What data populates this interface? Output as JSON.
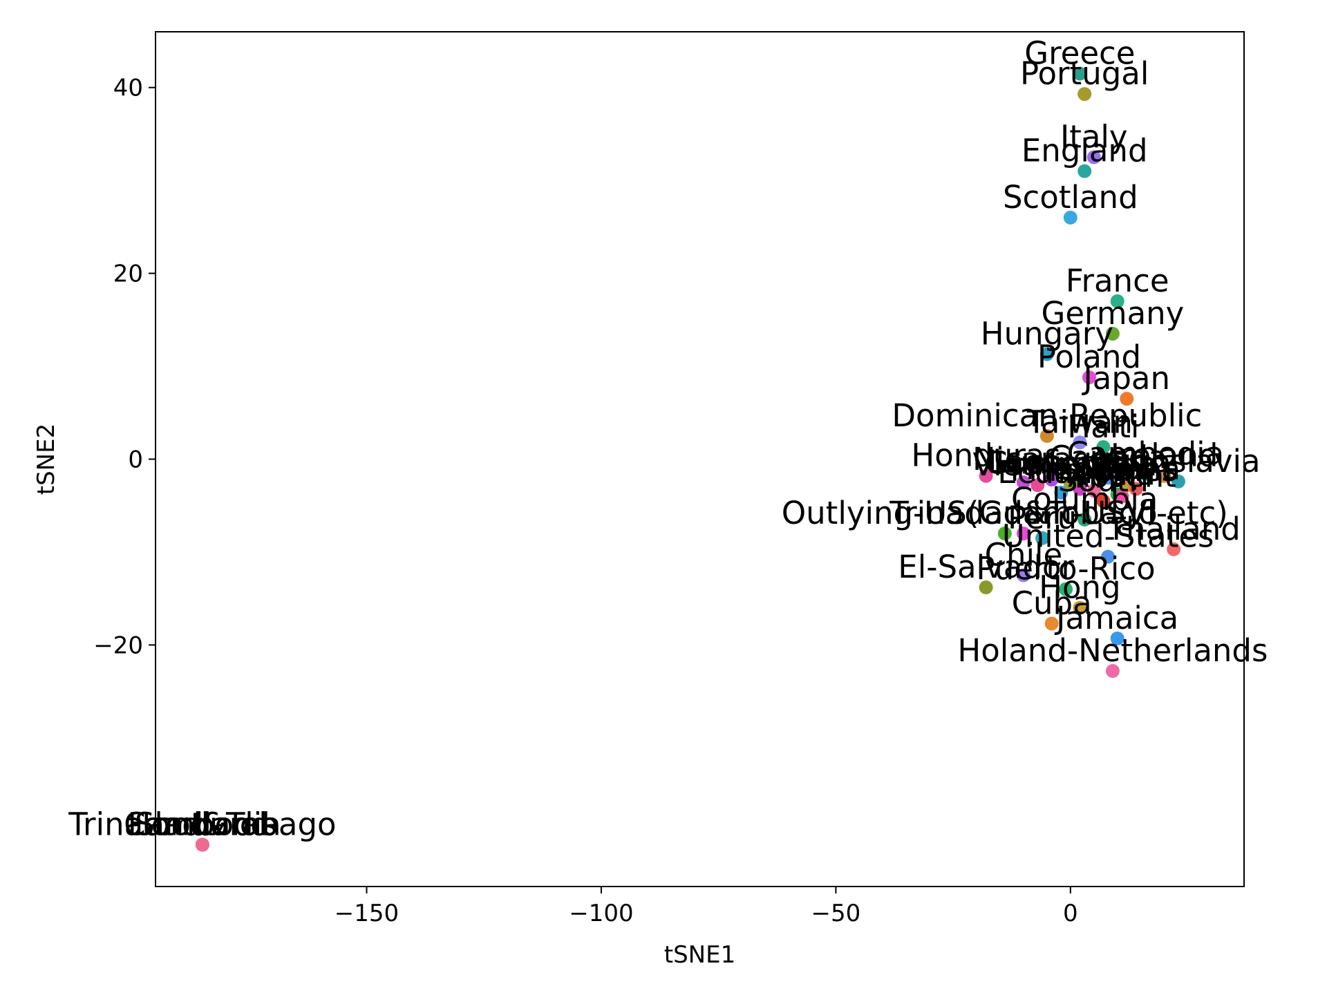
{
  "chart_data": {
    "type": "scatter",
    "title": "",
    "xlabel": "tSNE1",
    "ylabel": "tSNE2",
    "xlim": [
      -195,
      37
    ],
    "ylim": [
      -46,
      46
    ],
    "xticks": [
      -150,
      -100,
      -50,
      0
    ],
    "xtick_labels": [
      "−150",
      "−100",
      "−50",
      "0"
    ],
    "yticks": [
      -20,
      0,
      20,
      40
    ],
    "ytick_labels": [
      "−20",
      "0",
      "20",
      "40"
    ],
    "grid": false,
    "legend": "none",
    "points": [
      {
        "label": "Greece",
        "x": 2,
        "y": 41.5,
        "color": "#2a9d8f"
      },
      {
        "label": "Portugal",
        "x": 3,
        "y": 39.3,
        "color": "#a89a2a"
      },
      {
        "label": "Italy",
        "x": 5,
        "y": 32.5,
        "color": "#9b6ff0"
      },
      {
        "label": "England",
        "x": 3,
        "y": 31,
        "color": "#2aa6a0"
      },
      {
        "label": "Scotland",
        "x": 0,
        "y": 26,
        "color": "#3aa8e0"
      },
      {
        "label": "France",
        "x": 10,
        "y": 17,
        "color": "#2ab08a"
      },
      {
        "label": "Germany",
        "x": 9,
        "y": 13.5,
        "color": "#6aa82a"
      },
      {
        "label": "Hungary",
        "x": -5,
        "y": 11.3,
        "color": "#2aa0c8"
      },
      {
        "label": "Poland",
        "x": 4,
        "y": 8.8,
        "color": "#e84ad8"
      },
      {
        "label": "Japan",
        "x": 12,
        "y": 6.5,
        "color": "#f07a2a"
      },
      {
        "label": "Dominican-Republic",
        "x": -5,
        "y": 2.5,
        "color": "#d0892a"
      },
      {
        "label": "Taiwan",
        "x": 2,
        "y": 1.8,
        "color": "#8a8af0"
      },
      {
        "label": "Haiti",
        "x": 7,
        "y": 1.3,
        "color": "#2ab080"
      },
      {
        "label": "Honduras",
        "x": -18,
        "y": -1.8,
        "color": "#e84aa0"
      },
      {
        "label": "Laos",
        "x": -10,
        "y": -2.5,
        "color": "#c84ad8"
      },
      {
        "label": "Nicaragua",
        "x": -4,
        "y": -2.2,
        "color": "#b04ae0"
      },
      {
        "label": "Vietnam",
        "x": -7,
        "y": -2.8,
        "color": "#e84a9a"
      },
      {
        "label": "Mexico",
        "x": 2,
        "y": -3.2,
        "color": "#d040c8"
      },
      {
        "label": "Cambodia",
        "x": 16,
        "y": -1.6,
        "color": "#2ab0a8"
      },
      {
        "label": "Ireland",
        "x": 20,
        "y": -1.8,
        "color": "#d08a30"
      },
      {
        "label": "Yugoslavia",
        "x": 23,
        "y": -2.4,
        "color": "#2a9fb0"
      },
      {
        "label": "Iran",
        "x": 12,
        "y": -2.8,
        "color": "#c89a2a"
      },
      {
        "label": "Canada",
        "x": 8,
        "y": -2.0,
        "color": "#4a8af0"
      },
      {
        "label": "China",
        "x": 14,
        "y": -3.2,
        "color": "#e85a5a"
      },
      {
        "label": "India",
        "x": 10,
        "y": -3.8,
        "color": "#2ab050"
      },
      {
        "label": "Philippines",
        "x": 5,
        "y": -3.4,
        "color": "#f06a9a"
      },
      {
        "label": "Guatemala",
        "x": 0,
        "y": -2.6,
        "color": "#a0a02a"
      },
      {
        "label": "Ecuador",
        "x": -2,
        "y": -3.6,
        "color": "#30a0e0"
      },
      {
        "label": "South",
        "x": 7,
        "y": -4.5,
        "color": "#e0402a"
      },
      {
        "label": "Absent",
        "x": 11,
        "y": -4.0,
        "color": "#f050a8"
      },
      {
        "label": "Columbia",
        "x": 3,
        "y": -6.5,
        "color": "#2aa87a"
      },
      {
        "label": "Outlying-US(Guam-USVI-etc)",
        "x": -14,
        "y": -8.0,
        "color": "#4ab02a"
      },
      {
        "label": "Trinadad&Tobago",
        "x": -10,
        "y": -8.0,
        "color": "#e84ad8"
      },
      {
        "label": "Peru",
        "x": -6,
        "y": -8.5,
        "color": "#2aa8c0"
      },
      {
        "label": "Thailand",
        "x": 22,
        "y": -9.7,
        "color": "#f06a6a"
      },
      {
        "label": "United-States",
        "x": 8,
        "y": -10.5,
        "color": "#4a90e8"
      },
      {
        "label": "Chile",
        "x": -10,
        "y": -12.5,
        "color": "#9a7af0"
      },
      {
        "label": "El-Salvador",
        "x": -18,
        "y": -13.8,
        "color": "#8a9a2a"
      },
      {
        "label": "Puerto-Rico",
        "x": -1,
        "y": -14.0,
        "color": "#2ab070"
      },
      {
        "label": "Hong",
        "x": 2,
        "y": -16.0,
        "color": "#c8a02a"
      },
      {
        "label": "Cuba",
        "x": -4,
        "y": -17.7,
        "color": "#e88a30"
      },
      {
        "label": "Jamaica",
        "x": 10,
        "y": -19.3,
        "color": "#3a98e8"
      },
      {
        "label": "Holand-Netherlands",
        "x": 9,
        "y": -22.8,
        "color": "#f06aa8"
      },
      {
        "label": "Scotland",
        "x": -185,
        "y": -41.5,
        "color": "#f06a90"
      },
      {
        "label": "Trinadad&Tobago",
        "x": -185,
        "y": -41.5,
        "color": "#f06a90"
      },
      {
        "label": "Cambodia",
        "x": -185,
        "y": -41.5,
        "color": "#f06a90"
      },
      {
        "label": "Honduras",
        "x": -185,
        "y": -41.5,
        "color": "#f06a90"
      }
    ]
  }
}
